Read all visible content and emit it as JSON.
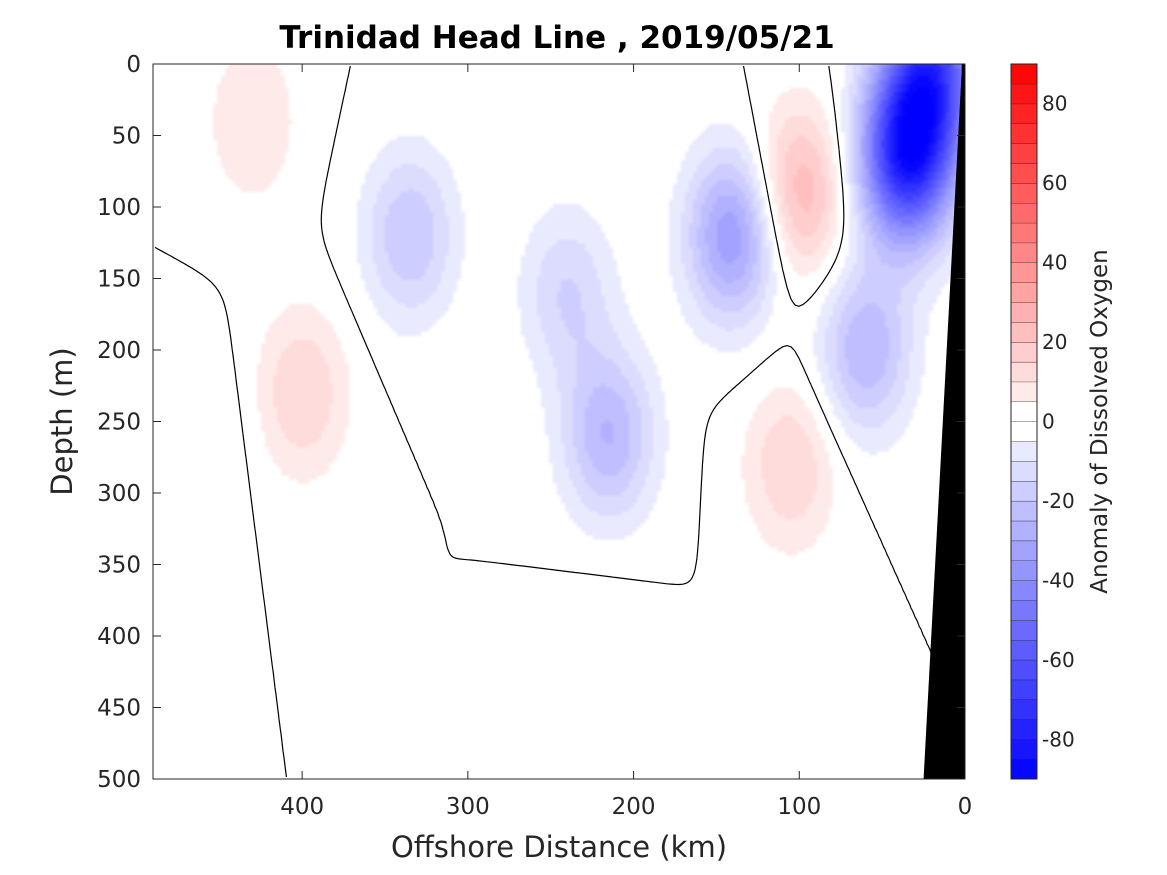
{
  "chart_data": {
    "type": "heatmap",
    "title": "Trinidad Head Line , 2019/05/21",
    "xlabel": "Offshore Distance (km)",
    "ylabel": "Depth (m)",
    "colorbar_label": "Anomaly of Dissolved Oxygen",
    "xlim": [
      490,
      0
    ],
    "ylim": [
      0,
      500
    ],
    "x_ticks": [
      400,
      300,
      200,
      100,
      0
    ],
    "y_ticks": [
      0,
      50,
      100,
      150,
      200,
      250,
      300,
      350,
      400,
      450,
      500
    ],
    "colorbar_range": [
      -90,
      90
    ],
    "colorbar_step": 5,
    "colorbar_ticks": [
      80,
      60,
      40,
      20,
      0,
      -20,
      -40,
      -60,
      -80
    ],
    "colormap": {
      "negative": "#0000ff",
      "zero": "#ffffff",
      "positive": "#ff0000"
    },
    "grid": false,
    "bathymetry": {
      "color": "#000000",
      "boundary": [
        [
          2,
          5
        ],
        [
          25,
          500
        ]
      ]
    },
    "zero_contour_color": "#000000",
    "features": [
      {
        "type": "anomaly_max",
        "x": 400,
        "y": 230,
        "value": 15
      },
      {
        "type": "anomaly_max",
        "x": 430,
        "y": 40,
        "value": 10
      },
      {
        "type": "anomaly_max",
        "x": 100,
        "y": 90,
        "value": 25
      },
      {
        "type": "anomaly_max",
        "x": 105,
        "y": 280,
        "value": 15
      },
      {
        "type": "anomaly_max",
        "x": 220,
        "y": 420,
        "value": 5
      },
      {
        "type": "anomaly_min",
        "x": 35,
        "y": 65,
        "value": -75
      },
      {
        "type": "anomaly_min",
        "x": 20,
        "y": 5,
        "value": -60
      },
      {
        "type": "anomaly_min",
        "x": 140,
        "y": 120,
        "value": -35
      },
      {
        "type": "anomaly_min",
        "x": 215,
        "y": 260,
        "value": -25
      },
      {
        "type": "anomaly_min",
        "x": 335,
        "y": 120,
        "value": -20
      },
      {
        "type": "anomaly_min",
        "x": 240,
        "y": 160,
        "value": -15
      },
      {
        "type": "anomaly_min",
        "x": 460,
        "y": 260,
        "value": -5
      },
      {
        "type": "anomaly_min",
        "x": 60,
        "y": 200,
        "value": -25
      }
    ]
  }
}
